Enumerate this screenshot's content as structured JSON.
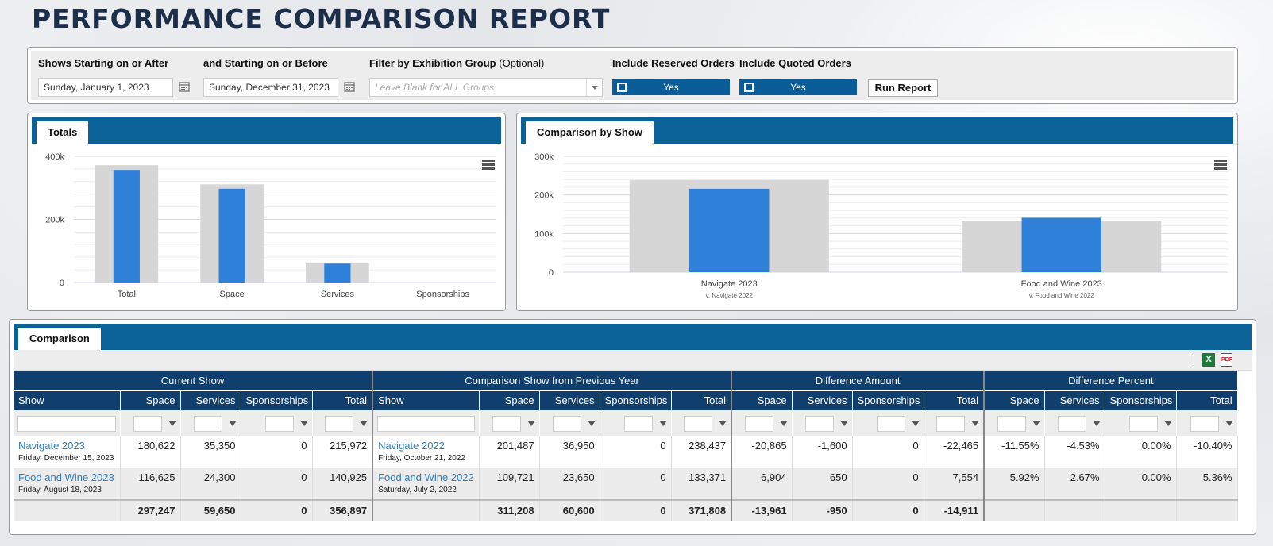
{
  "title": "PERFORMANCE COMPARISON REPORT",
  "filters": {
    "start_label": "Shows Starting on or After",
    "start_value": "Sunday, January 1, 2023",
    "end_label": "and Starting on or Before",
    "end_value": "Sunday, December 31, 2023",
    "group_label": "Filter by Exhibition Group",
    "group_optional": "(Optional)",
    "group_placeholder": "Leave Blank for ALL Groups",
    "reserved_label": "Include Reserved Orders",
    "reserved_value": "Yes",
    "quoted_label": "Include Quoted Orders",
    "quoted_value": "Yes",
    "run_button": "Run Report"
  },
  "totals_panel": {
    "tab": "Totals",
    "y_ticks": [
      "0",
      "200k",
      "400k"
    ],
    "categories": [
      "Total",
      "Space",
      "Services",
      "Sponsorships"
    ]
  },
  "comparison_panel": {
    "tab": "Comparison by Show",
    "y_ticks": [
      "0",
      "100k",
      "200k",
      "300k"
    ],
    "shows": [
      {
        "name": "Navigate 2023",
        "sub": "v. Navigate 2022"
      },
      {
        "name": "Food and Wine 2023",
        "sub": "v. Food and Wine 2022"
      }
    ]
  },
  "chart_data": [
    {
      "type": "bar",
      "title": "Totals",
      "categories": [
        "Total",
        "Space",
        "Services",
        "Sponsorships"
      ],
      "series": [
        {
          "values": [
            371808,
            311208,
            60600,
            0
          ],
          "color": "#d6d6d6"
        },
        {
          "values": [
            356897,
            297247,
            59650,
            0
          ],
          "color": "#2f80d8"
        }
      ],
      "ylim": [
        0,
        400000
      ],
      "grid": true
    },
    {
      "type": "bar",
      "title": "Comparison by Show",
      "categories": [
        "Navigate 2023",
        "Food and Wine 2023"
      ],
      "series": [
        {
          "values": [
            238437,
            133371
          ],
          "color": "#d6d6d6"
        },
        {
          "values": [
            215972,
            140925
          ],
          "color": "#2f80d8"
        }
      ],
      "ylim": [
        0,
        300000
      ],
      "grid": true
    }
  ],
  "table": {
    "tab": "Comparison",
    "group_headers": [
      "Current Show",
      "Comparison Show from Previous Year",
      "Difference Amount",
      "Difference Percent"
    ],
    "columns": [
      "Show",
      "Space",
      "Services",
      "Sponsorships",
      "Total"
    ],
    "rows": [
      {
        "cur_show": "Navigate 2023",
        "cur_date": "Friday, December 15, 2023",
        "cur": [
          "180,622",
          "35,350",
          "0",
          "215,972"
        ],
        "prev_show": "Navigate 2022",
        "prev_date": "Friday, October 21, 2022",
        "prev": [
          "201,487",
          "36,950",
          "0",
          "238,437"
        ],
        "diff": [
          "-20,865",
          "-1,600",
          "0",
          "-22,465"
        ],
        "pct": [
          "-11.55%",
          "-4.53%",
          "0.00%",
          "-10.40%"
        ]
      },
      {
        "cur_show": "Food and Wine 2023",
        "cur_date": "Friday, August 18, 2023",
        "cur": [
          "116,625",
          "24,300",
          "0",
          "140,925"
        ],
        "prev_show": "Food and Wine 2022",
        "prev_date": "Saturday, July 2, 2022",
        "prev": [
          "109,721",
          "23,650",
          "0",
          "133,371"
        ],
        "diff": [
          "6,904",
          "650",
          "0",
          "7,554"
        ],
        "pct": [
          "5.92%",
          "2.67%",
          "0.00%",
          "5.36%"
        ]
      }
    ],
    "totals": {
      "cur": [
        "297,247",
        "59,650",
        "0",
        "356,897"
      ],
      "prev": [
        "311,208",
        "60,600",
        "0",
        "371,808"
      ],
      "diff": [
        "-13,961",
        "-950",
        "0",
        "-14,911"
      ]
    }
  }
}
